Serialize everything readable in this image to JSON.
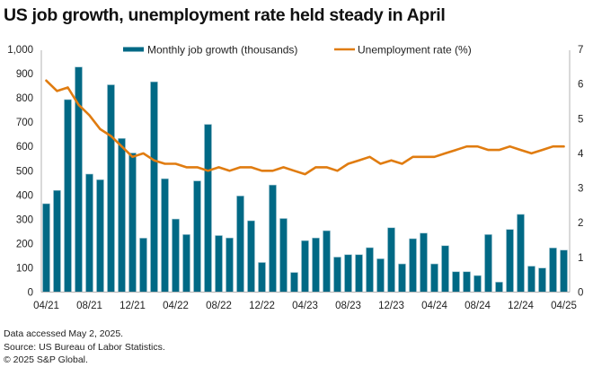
{
  "title": "US job growth, unemployment rate held steady in April",
  "footer": {
    "line1": "Data accessed May 2, 2025.",
    "line2": "Source: US Bureau of Labor Statistics.",
    "line3": "© 2025 S&P Global."
  },
  "colors": {
    "bar": "#006985",
    "line": "#E07C10",
    "axis": "#b3b3b3"
  },
  "chart_data": {
    "type": "bar",
    "title": "US job growth, unemployment rate held steady in April",
    "xlabel": "",
    "ylabel": "",
    "y2label": "",
    "ylim": [
      0,
      1000
    ],
    "y2lim": [
      0,
      7
    ],
    "yticks": [
      "0",
      "100",
      "200",
      "300",
      "400",
      "500",
      "600",
      "700",
      "800",
      "900",
      "1,000"
    ],
    "y2ticks": [
      "0",
      "1",
      "2",
      "3",
      "4",
      "5",
      "6",
      "7"
    ],
    "grid": false,
    "legend_position": "top-center",
    "x_tick_labels": [
      {
        "index": 0,
        "label": "04/21"
      },
      {
        "index": 4,
        "label": "08/21"
      },
      {
        "index": 8,
        "label": "12/21"
      },
      {
        "index": 12,
        "label": "04/22"
      },
      {
        "index": 16,
        "label": "08/22"
      },
      {
        "index": 20,
        "label": "12/22"
      },
      {
        "index": 24,
        "label": "04/23"
      },
      {
        "index": 28,
        "label": "08/23"
      },
      {
        "index": 32,
        "label": "12/23"
      },
      {
        "index": 36,
        "label": "04/24"
      },
      {
        "index": 40,
        "label": "08/24"
      },
      {
        "index": 44,
        "label": "12/24"
      },
      {
        "index": 48,
        "label": "04/25"
      }
    ],
    "categories": [
      "04/21",
      "05/21",
      "06/21",
      "07/21",
      "08/21",
      "09/21",
      "10/21",
      "11/21",
      "12/21",
      "01/22",
      "02/22",
      "03/22",
      "04/22",
      "05/22",
      "06/22",
      "07/22",
      "08/22",
      "09/22",
      "10/22",
      "11/22",
      "12/22",
      "01/23",
      "02/23",
      "03/23",
      "04/23",
      "05/23",
      "06/23",
      "07/23",
      "08/23",
      "09/23",
      "10/23",
      "11/23",
      "12/23",
      "01/24",
      "02/24",
      "03/24",
      "04/24",
      "05/24",
      "06/24",
      "07/24",
      "08/24",
      "09/24",
      "10/24",
      "11/24",
      "12/24",
      "01/25",
      "02/25",
      "03/25",
      "04/25"
    ],
    "series": [
      {
        "name": "Monthly job growth (thousands)",
        "type": "bar",
        "axis": "left",
        "values": [
          364,
          419,
          793,
          927,
          486,
          463,
          854,
          633,
          573,
          222,
          866,
          467,
          301,
          237,
          458,
          691,
          233,
          223,
          396,
          294,
          122,
          441,
          303,
          81,
          212,
          223,
          253,
          144,
          154,
          154,
          183,
          137,
          265,
          116,
          220,
          243,
          116,
          191,
          84,
          84,
          68,
          237,
          41,
          258,
          320,
          107,
          99,
          182,
          173
        ]
      },
      {
        "name": "Unemployment rate (%)",
        "type": "line",
        "axis": "right",
        "values": [
          6.1,
          5.8,
          5.9,
          5.4,
          5.1,
          4.7,
          4.5,
          4.2,
          3.9,
          4.0,
          3.8,
          3.7,
          3.7,
          3.6,
          3.6,
          3.5,
          3.6,
          3.5,
          3.6,
          3.6,
          3.5,
          3.5,
          3.6,
          3.5,
          3.4,
          3.6,
          3.6,
          3.5,
          3.7,
          3.8,
          3.9,
          3.7,
          3.8,
          3.7,
          3.9,
          3.9,
          3.9,
          4.0,
          4.1,
          4.2,
          4.2,
          4.1,
          4.1,
          4.2,
          4.1,
          4.0,
          4.1,
          4.2,
          4.2
        ]
      }
    ]
  }
}
